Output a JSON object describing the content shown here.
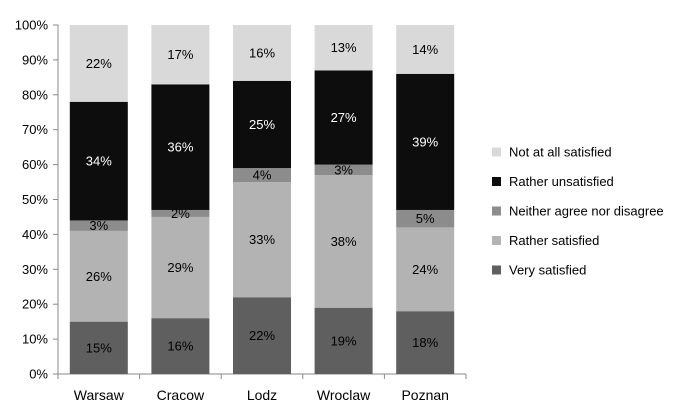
{
  "chart_data": {
    "type": "bar",
    "stacked": true,
    "percent_stacked": true,
    "categories": [
      "Warsaw",
      "Cracow",
      "Lodz",
      "Wroclaw",
      "Poznan"
    ],
    "series": [
      {
        "name": "Very satisfied",
        "values": [
          15,
          16,
          22,
          19,
          18
        ],
        "labels": [
          "15%",
          "16%",
          "22%",
          "19%",
          "18%"
        ],
        "color": "#5f5f5f",
        "label_color": "#000000"
      },
      {
        "name": "Rather satisfied",
        "values": [
          26,
          29,
          33,
          38,
          24
        ],
        "labels": [
          "26%",
          "29%",
          "33%",
          "38%",
          "24%"
        ],
        "color": "#b3b3b3",
        "label_color": "#000000"
      },
      {
        "name": "Neither agree nor disagree",
        "values": [
          3,
          2,
          4,
          3,
          5
        ],
        "labels": [
          "3%",
          "2%",
          "4%",
          "3%",
          "5%"
        ],
        "color": "#8c8c8c",
        "label_color": "#000000"
      },
      {
        "name": "Rather unsatisfied",
        "values": [
          34,
          36,
          25,
          27,
          39
        ],
        "labels": [
          "34%",
          "36%",
          "25%",
          "27%",
          "39%"
        ],
        "color": "#0d0d0d",
        "label_color": "#ffffff"
      },
      {
        "name": "Not at all satisfied",
        "values": [
          22,
          17,
          16,
          13,
          14
        ],
        "labels": [
          "22%",
          "17%",
          "16%",
          "13%",
          "14%"
        ],
        "color": "#d9d9d9",
        "label_color": "#000000"
      }
    ],
    "y_ticks": [
      "0%",
      "10%",
      "20%",
      "30%",
      "40%",
      "50%",
      "60%",
      "70%",
      "80%",
      "90%",
      "100%"
    ],
    "ylim": [
      0,
      100
    ],
    "grid": false,
    "legend_position": "right",
    "title": "",
    "xlabel": "",
    "ylabel": ""
  }
}
